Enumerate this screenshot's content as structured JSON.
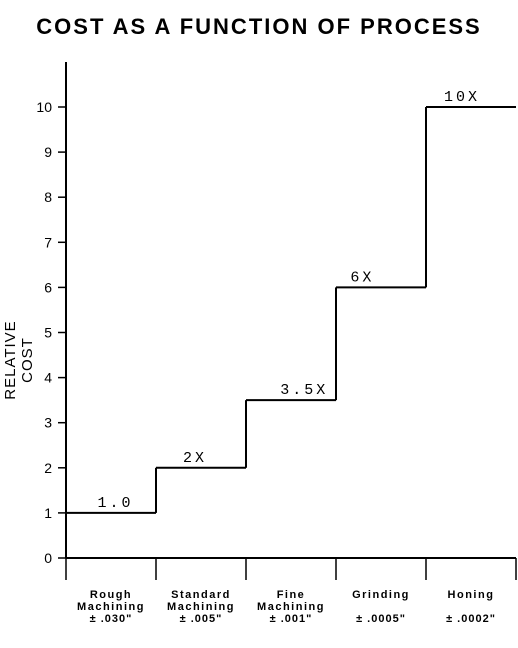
{
  "chart_data": {
    "type": "line",
    "step": true,
    "title": "COST AS A FUNCTION OF PROCESS",
    "ylabel": "RELATIVE COST",
    "xlabel": "",
    "ylim": [
      0,
      10
    ],
    "yticks": [
      "0",
      "1",
      "2",
      "3",
      "4",
      "5",
      "6",
      "7",
      "8",
      "9",
      "10"
    ],
    "grid": false,
    "categories": [
      {
        "name_lines": [
          "Rough",
          "Machining"
        ],
        "tolerance": "± .030\""
      },
      {
        "name_lines": [
          "Standard",
          "Machining"
        ],
        "tolerance": "± .005\""
      },
      {
        "name_lines": [
          "Fine",
          "Machining"
        ],
        "tolerance": "± .001\""
      },
      {
        "name_lines": [
          "Grinding"
        ],
        "tolerance": "± .0005\""
      },
      {
        "name_lines": [
          "Honing"
        ],
        "tolerance": "± .0002\""
      }
    ],
    "values": [
      1,
      2,
      3.5,
      6,
      10
    ],
    "data_labels": [
      "1.0",
      "2X",
      "3.5X",
      "6X",
      "10X"
    ]
  }
}
